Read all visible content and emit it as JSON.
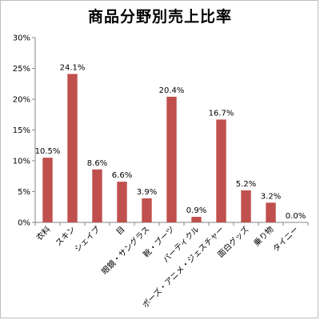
{
  "chart_data": {
    "type": "bar",
    "title": "商品分野別売上比率",
    "xlabel": "",
    "ylabel": "",
    "ylim": [
      0,
      30
    ],
    "yticks": [
      0,
      5,
      10,
      15,
      20,
      25,
      30
    ],
    "ytick_labels": [
      "0%",
      "5%",
      "10%",
      "15%",
      "20%",
      "25%",
      "30%"
    ],
    "grid": false,
    "legend": "none",
    "bar_color": "#c0504d",
    "categories": [
      "衣料",
      "スキン",
      "シェイプ",
      "目",
      "眼鏡・サングラス",
      "靴・ブーツ",
      "パーティクル",
      "ポーズ・アニメ・ジェスチャー",
      "面白グッズ",
      "乗り物",
      "タイニー"
    ],
    "values": [
      10.5,
      24.1,
      8.6,
      6.6,
      3.9,
      20.4,
      0.9,
      16.7,
      5.2,
      3.2,
      0.0
    ],
    "data_labels": [
      "10.5%",
      "24.1%",
      "8.6%",
      "6.6%",
      "3.9%",
      "20.4%",
      "0.9%",
      "16.7%",
      "5.2%",
      "3.2%",
      "0.0%"
    ]
  }
}
